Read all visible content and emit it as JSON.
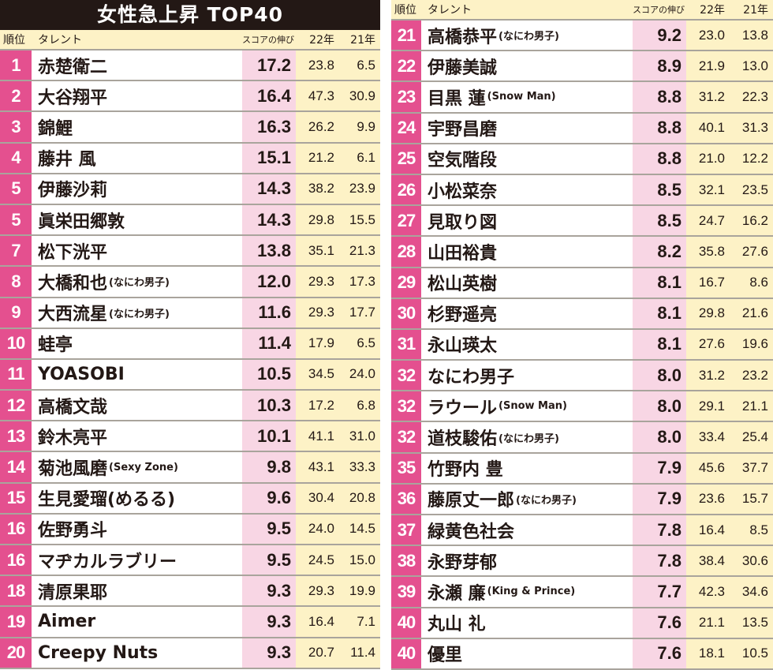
{
  "title": "女性急上昇 TOP40",
  "headers": {
    "rank": "順位",
    "name": "タレント",
    "score": "スコアの伸び",
    "y22": "22年",
    "y21": "21年"
  },
  "left_rows": [
    {
      "rank": "1",
      "name": "赤楚衛二",
      "suffix": "",
      "score": "17.2",
      "y22": "23.8",
      "y21": "6.5"
    },
    {
      "rank": "2",
      "name": "大谷翔平",
      "suffix": "",
      "score": "16.4",
      "y22": "47.3",
      "y21": "30.9"
    },
    {
      "rank": "3",
      "name": "錦鯉",
      "suffix": "",
      "score": "16.3",
      "y22": "26.2",
      "y21": "9.9"
    },
    {
      "rank": "4",
      "name": "藤井 風",
      "suffix": "",
      "score": "15.1",
      "y22": "21.2",
      "y21": "6.1"
    },
    {
      "rank": "5",
      "name": "伊藤沙莉",
      "suffix": "",
      "score": "14.3",
      "y22": "38.2",
      "y21": "23.9"
    },
    {
      "rank": "5",
      "name": "眞栄田郷敦",
      "suffix": "",
      "score": "14.3",
      "y22": "29.8",
      "y21": "15.5"
    },
    {
      "rank": "7",
      "name": "松下洸平",
      "suffix": "",
      "score": "13.8",
      "y22": "35.1",
      "y21": "21.3"
    },
    {
      "rank": "8",
      "name": "大橋和也",
      "suffix": "(なにわ男子)",
      "score": "12.0",
      "y22": "29.3",
      "y21": "17.3"
    },
    {
      "rank": "9",
      "name": "大西流星",
      "suffix": "(なにわ男子)",
      "score": "11.6",
      "y22": "29.3",
      "y21": "17.7"
    },
    {
      "rank": "10",
      "name": "蛙亭",
      "suffix": "",
      "score": "11.4",
      "y22": "17.9",
      "y21": "6.5"
    },
    {
      "rank": "11",
      "name": "YOASOBI",
      "suffix": "",
      "score": "10.5",
      "y22": "34.5",
      "y21": "24.0"
    },
    {
      "rank": "12",
      "name": "高橋文哉",
      "suffix": "",
      "score": "10.3",
      "y22": "17.2",
      "y21": "6.8"
    },
    {
      "rank": "13",
      "name": "鈴木亮平",
      "suffix": "",
      "score": "10.1",
      "y22": "41.1",
      "y21": "31.0"
    },
    {
      "rank": "14",
      "name": "菊池風磨",
      "suffix": "(Sexy Zone)",
      "score": "9.8",
      "y22": "43.1",
      "y21": "33.3"
    },
    {
      "rank": "15",
      "name": "生見愛瑠(めるる)",
      "suffix": "",
      "score": "9.6",
      "y22": "30.4",
      "y21": "20.8"
    },
    {
      "rank": "16",
      "name": "佐野勇斗",
      "suffix": "",
      "score": "9.5",
      "y22": "24.0",
      "y21": "14.5"
    },
    {
      "rank": "16",
      "name": "マヂカルラブリー",
      "suffix": "",
      "score": "9.5",
      "y22": "24.5",
      "y21": "15.0"
    },
    {
      "rank": "18",
      "name": "清原果耶",
      "suffix": "",
      "score": "9.3",
      "y22": "29.3",
      "y21": "19.9"
    },
    {
      "rank": "19",
      "name": "Aimer",
      "suffix": "",
      "score": "9.3",
      "y22": "16.4",
      "y21": "7.1"
    },
    {
      "rank": "20",
      "name": "Creepy Nuts",
      "suffix": "",
      "score": "9.3",
      "y22": "20.7",
      "y21": "11.4"
    }
  ],
  "right_rows": [
    {
      "rank": "21",
      "name": "高橋恭平",
      "suffix": "(なにわ男子)",
      "score": "9.2",
      "y22": "23.0",
      "y21": "13.8"
    },
    {
      "rank": "22",
      "name": "伊藤美誠",
      "suffix": "",
      "score": "8.9",
      "y22": "21.9",
      "y21": "13.0"
    },
    {
      "rank": "23",
      "name": "目黒 蓮",
      "suffix": "(Snow Man)",
      "score": "8.8",
      "y22": "31.2",
      "y21": "22.3"
    },
    {
      "rank": "24",
      "name": "宇野昌磨",
      "suffix": "",
      "score": "8.8",
      "y22": "40.1",
      "y21": "31.3"
    },
    {
      "rank": "25",
      "name": "空気階段",
      "suffix": "",
      "score": "8.8",
      "y22": "21.0",
      "y21": "12.2"
    },
    {
      "rank": "26",
      "name": "小松菜奈",
      "suffix": "",
      "score": "8.5",
      "y22": "32.1",
      "y21": "23.5"
    },
    {
      "rank": "27",
      "name": "見取り図",
      "suffix": "",
      "score": "8.5",
      "y22": "24.7",
      "y21": "16.2"
    },
    {
      "rank": "28",
      "name": "山田裕貴",
      "suffix": "",
      "score": "8.2",
      "y22": "35.8",
      "y21": "27.6"
    },
    {
      "rank": "29",
      "name": "松山英樹",
      "suffix": "",
      "score": "8.1",
      "y22": "16.7",
      "y21": "8.6"
    },
    {
      "rank": "30",
      "name": "杉野遥亮",
      "suffix": "",
      "score": "8.1",
      "y22": "29.8",
      "y21": "21.6"
    },
    {
      "rank": "31",
      "name": "永山瑛太",
      "suffix": "",
      "score": "8.1",
      "y22": "27.6",
      "y21": "19.6"
    },
    {
      "rank": "32",
      "name": "なにわ男子",
      "suffix": "",
      "score": "8.0",
      "y22": "31.2",
      "y21": "23.2"
    },
    {
      "rank": "32",
      "name": "ラウール",
      "suffix": "(Snow Man)",
      "score": "8.0",
      "y22": "29.1",
      "y21": "21.1"
    },
    {
      "rank": "32",
      "name": "道枝駿佑",
      "suffix": "(なにわ男子)",
      "score": "8.0",
      "y22": "33.4",
      "y21": "25.4"
    },
    {
      "rank": "35",
      "name": "竹野内 豊",
      "suffix": "",
      "score": "7.9",
      "y22": "45.6",
      "y21": "37.7"
    },
    {
      "rank": "36",
      "name": "藤原丈一郎",
      "suffix": "(なにわ男子)",
      "score": "7.9",
      "y22": "23.6",
      "y21": "15.7"
    },
    {
      "rank": "37",
      "name": "緑黄色社会",
      "suffix": "",
      "score": "7.8",
      "y22": "16.4",
      "y21": "8.5"
    },
    {
      "rank": "38",
      "name": "永野芽郁",
      "suffix": "",
      "score": "7.8",
      "y22": "38.4",
      "y21": "30.6"
    },
    {
      "rank": "39",
      "name": "永瀬 廉",
      "suffix": "(King & Prince)",
      "score": "7.7",
      "y22": "42.3",
      "y21": "34.6"
    },
    {
      "rank": "40",
      "name": "丸山 礼",
      "suffix": "",
      "score": "7.6",
      "y22": "21.1",
      "y21": "13.5"
    },
    {
      "rank": "40",
      "name": "優里",
      "suffix": "",
      "score": "7.6",
      "y22": "18.1",
      "y21": "10.5"
    }
  ]
}
